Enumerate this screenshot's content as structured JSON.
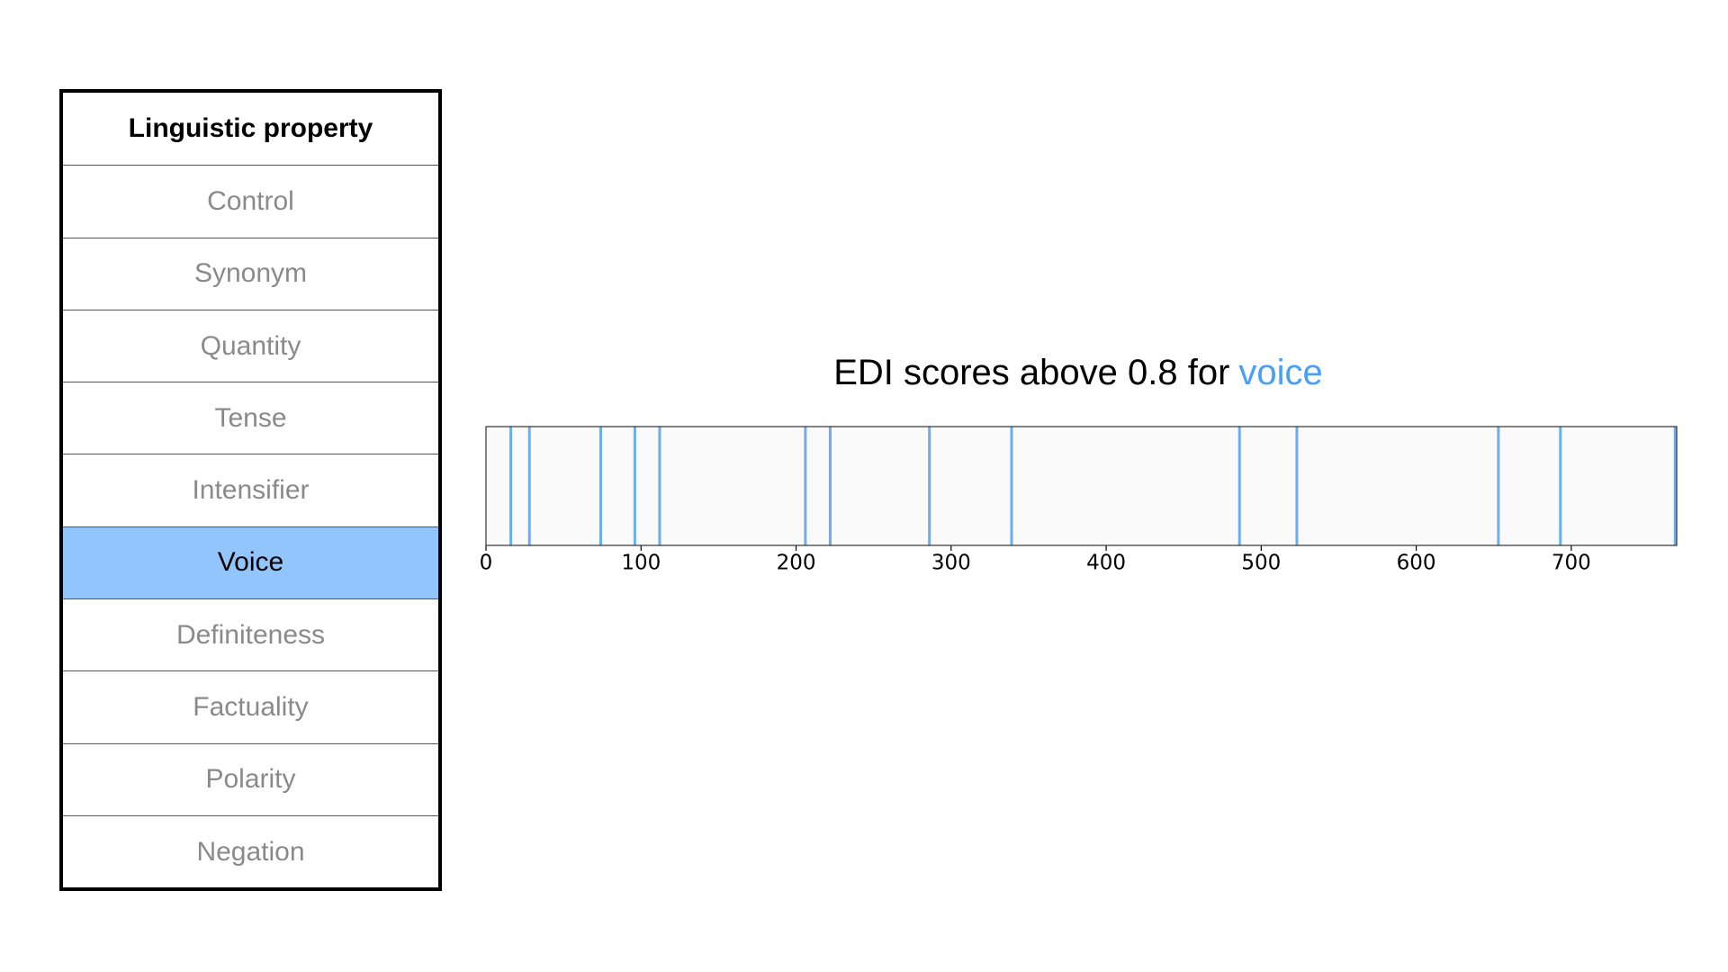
{
  "table": {
    "header": "Linguistic property",
    "rows": [
      "Control",
      "Synonym",
      "Quantity",
      "Tense",
      "Intensifier",
      "Voice",
      "Definiteness",
      "Factuality",
      "Polarity",
      "Negation"
    ],
    "selected": 5,
    "highlight_color": "#93c5fd"
  },
  "chart_data": {
    "type": "event",
    "title": "EDI scores above 0.8 for",
    "title_highlight": "voice",
    "highlight_color": "#4a9ff5",
    "color": "#6aaef0",
    "x": [
      16,
      28,
      74,
      96,
      112,
      206,
      222,
      286,
      339,
      486,
      523,
      653,
      693,
      767
    ],
    "xlim": [
      0,
      768
    ],
    "xticks": [
      0,
      100,
      200,
      300,
      400,
      500,
      600,
      700
    ]
  }
}
